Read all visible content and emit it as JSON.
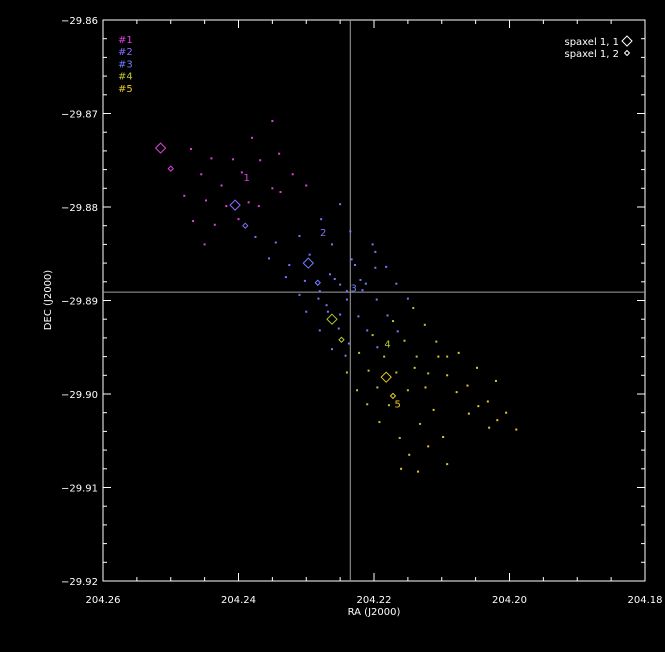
{
  "chart_data": {
    "type": "scatter",
    "xlabel": "RA (J2000)",
    "ylabel": "DEC (J2000)",
    "xlim": [
      204.26,
      204.18
    ],
    "ylim": [
      -29.92,
      -29.86
    ],
    "x_ticks": [
      204.26,
      204.24,
      204.22,
      204.2,
      204.18
    ],
    "x_tick_labels": [
      "204.26",
      "204.24",
      "204.22",
      "204.20",
      "204.18"
    ],
    "y_ticks": [
      -29.86,
      -29.87,
      -29.88,
      -29.89,
      -29.9,
      -29.91,
      -29.92
    ],
    "y_tick_labels": [
      "−29.86",
      "−29.87",
      "−29.88",
      "−29.89",
      "−29.90",
      "−29.91",
      "−29.92"
    ],
    "crosshair": {
      "ra": 204.2235,
      "dec": -29.8891
    },
    "colors": {
      "background": "#000000",
      "axes": "#ffffff",
      "crosshair": "#a0a0a0"
    },
    "series": [
      {
        "name": "#1",
        "color": "#e040e0",
        "label": "1",
        "label_pos": [
          204.2388,
          -29.8768
        ],
        "spaxel_1_1": [
          204.2515,
          -29.8737
        ],
        "spaxel_1_2": [
          204.25,
          -29.8759
        ],
        "points": [
          [
            204.247,
            -29.8738
          ],
          [
            204.244,
            -29.8748
          ],
          [
            204.2408,
            -29.8749
          ],
          [
            204.238,
            -29.8726
          ],
          [
            204.235,
            -29.8708
          ],
          [
            204.2455,
            -29.8765
          ],
          [
            204.2425,
            -29.8777
          ],
          [
            204.2395,
            -29.8763
          ],
          [
            204.2368,
            -29.875
          ],
          [
            204.234,
            -29.8743
          ],
          [
            204.248,
            -29.8788
          ],
          [
            204.2448,
            -29.8793
          ],
          [
            204.2418,
            -29.8799
          ],
          [
            204.2385,
            -29.8795
          ],
          [
            204.235,
            -29.878
          ],
          [
            204.232,
            -29.8765
          ],
          [
            204.2467,
            -29.8815
          ],
          [
            204.2435,
            -29.8819
          ],
          [
            204.24,
            -29.8813
          ],
          [
            204.237,
            -29.8799
          ],
          [
            204.2338,
            -29.8784
          ],
          [
            204.23,
            -29.8777
          ],
          [
            204.245,
            -29.884
          ]
        ]
      },
      {
        "name": "#2",
        "color": "#8a6cff",
        "label": "2",
        "label_pos": [
          204.2275,
          -29.8827
        ],
        "spaxel_1_1": [
          204.2405,
          -29.8798
        ],
        "spaxel_1_2": [
          204.239,
          -29.882
        ],
        "points": [
          [
            204.2375,
            -29.8832
          ],
          [
            204.2345,
            -29.8838
          ],
          [
            204.231,
            -29.8831
          ],
          [
            204.2278,
            -29.8813
          ],
          [
            204.225,
            -29.8797
          ],
          [
            204.2355,
            -29.8855
          ],
          [
            204.2325,
            -29.8862
          ],
          [
            204.2295,
            -29.8851
          ],
          [
            204.2262,
            -29.884
          ],
          [
            204.2235,
            -29.8826
          ],
          [
            204.233,
            -29.8875
          ],
          [
            204.2302,
            -29.8879
          ],
          [
            204.2265,
            -29.8872
          ],
          [
            204.2233,
            -29.8856
          ],
          [
            204.2202,
            -29.884
          ],
          [
            204.231,
            -29.8894
          ],
          [
            204.228,
            -29.889
          ],
          [
            204.225,
            -29.8883
          ],
          [
            204.222,
            -29.8878
          ],
          [
            204.2198,
            -29.8865
          ],
          [
            204.23,
            -29.8912
          ],
          [
            204.227,
            -29.8905
          ],
          [
            204.224,
            -29.889
          ],
          [
            204.2217,
            -29.8889
          ]
        ]
      },
      {
        "name": "#3",
        "color": "#6f80ff",
        "label": "3",
        "label_pos": [
          204.223,
          -29.8886
        ],
        "spaxel_1_1": [
          204.2297,
          -29.886
        ],
        "spaxel_1_2": [
          204.2283,
          -29.8881
        ],
        "points": [
          [
            204.2198,
            -29.8848
          ],
          [
            204.2228,
            -29.8862
          ],
          [
            204.2258,
            -29.8877
          ],
          [
            204.2282,
            -29.8898
          ],
          [
            204.225,
            -29.8915
          ],
          [
            204.2182,
            -29.8864
          ],
          [
            204.2212,
            -29.8882
          ],
          [
            204.224,
            -29.8899
          ],
          [
            204.2268,
            -29.8912
          ],
          [
            204.228,
            -29.8932
          ],
          [
            204.2167,
            -29.8882
          ],
          [
            204.2196,
            -29.8899
          ],
          [
            204.2223,
            -29.8917
          ],
          [
            204.2252,
            -29.893
          ],
          [
            204.2262,
            -29.8952
          ],
          [
            204.215,
            -29.8898
          ],
          [
            204.218,
            -29.8916
          ],
          [
            204.221,
            -29.8932
          ],
          [
            204.2237,
            -29.8946
          ],
          [
            204.2242,
            -29.8959
          ],
          [
            204.2165,
            -29.8933
          ],
          [
            204.2195,
            -29.895
          ]
        ]
      },
      {
        "name": "#4",
        "color": "#b8c832",
        "label": "4",
        "label_pos": [
          204.218,
          -29.8946
        ],
        "spaxel_1_1": [
          204.2262,
          -29.892
        ],
        "spaxel_1_2": [
          204.2248,
          -29.8942
        ],
        "points": [
          [
            204.2142,
            -29.8908
          ],
          [
            204.2172,
            -29.8922
          ],
          [
            204.2202,
            -29.8937
          ],
          [
            204.2222,
            -29.8956
          ],
          [
            204.224,
            -29.8977
          ],
          [
            204.2125,
            -29.8926
          ],
          [
            204.2155,
            -29.8943
          ],
          [
            204.2185,
            -29.896
          ],
          [
            204.2208,
            -29.8975
          ],
          [
            204.2225,
            -29.8996
          ],
          [
            204.2108,
            -29.8944
          ],
          [
            204.2137,
            -29.896
          ],
          [
            204.2167,
            -29.8977
          ],
          [
            204.2195,
            -29.8993
          ],
          [
            204.221,
            -29.9011
          ],
          [
            204.2092,
            -29.896
          ],
          [
            204.212,
            -29.8978
          ],
          [
            204.215,
            -29.8996
          ],
          [
            204.2178,
            -29.9012
          ],
          [
            204.2192,
            -29.903
          ],
          [
            204.2162,
            -29.9047
          ],
          [
            204.2132,
            -29.9032
          ]
        ]
      },
      {
        "name": "#5",
        "color": "#e8c828",
        "label": "5",
        "label_pos": [
          204.2165,
          -29.901
        ],
        "spaxel_1_1": [
          204.2182,
          -29.8982
        ],
        "spaxel_1_2": [
          204.2172,
          -29.9002
        ],
        "points": [
          [
            204.2105,
            -29.896
          ],
          [
            204.2075,
            -29.8956
          ],
          [
            204.2048,
            -29.8972
          ],
          [
            204.202,
            -29.8986
          ],
          [
            204.2092,
            -29.898
          ],
          [
            204.2062,
            -29.8991
          ],
          [
            204.2032,
            -29.9008
          ],
          [
            204.2005,
            -29.902
          ],
          [
            204.2078,
            -29.8998
          ],
          [
            204.2046,
            -29.9013
          ],
          [
            204.2018,
            -29.9028
          ],
          [
            204.199,
            -29.9038
          ],
          [
            204.206,
            -29.9021
          ],
          [
            204.203,
            -29.9036
          ],
          [
            204.2112,
            -29.9017
          ],
          [
            204.2124,
            -29.8993
          ],
          [
            204.214,
            -29.8972
          ],
          [
            204.2098,
            -29.9046
          ],
          [
            204.212,
            -29.9056
          ],
          [
            204.2148,
            -29.9065
          ],
          [
            204.2092,
            -29.9075
          ],
          [
            204.2135,
            -29.9083
          ],
          [
            204.216,
            -29.908
          ]
        ]
      }
    ],
    "legend_right": [
      {
        "label": "spaxel 1, 1",
        "marker": "large-diamond"
      },
      {
        "label": "spaxel 1, 2",
        "marker": "small-diamond"
      }
    ]
  }
}
